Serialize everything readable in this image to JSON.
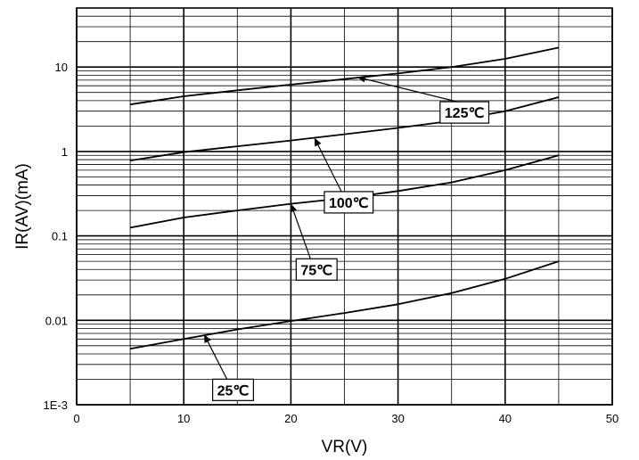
{
  "chart_data": {
    "type": "line",
    "title": "",
    "xlabel": "VR(V)",
    "ylabel": "IR(AV)(mA)",
    "xlim": [
      0,
      50
    ],
    "ylim": [
      0.001,
      50
    ],
    "yscale": "log",
    "grid": true,
    "x_ticks": [
      {
        "value": 0,
        "label": "0"
      },
      {
        "value": 10,
        "label": "10"
      },
      {
        "value": 20,
        "label": "20"
      },
      {
        "value": 30,
        "label": "30"
      },
      {
        "value": 40,
        "label": "40"
      },
      {
        "value": 50,
        "label": "50"
      }
    ],
    "y_ticks": [
      {
        "value": 0.001,
        "label": "1E-3"
      },
      {
        "value": 0.01,
        "label": "0.01"
      },
      {
        "value": 0.1,
        "label": "0.1"
      },
      {
        "value": 1,
        "label": "1"
      },
      {
        "value": 10,
        "label": "10"
      }
    ],
    "series": [
      {
        "name": "125℃",
        "x": [
          5,
          10,
          15,
          20,
          25,
          30,
          35,
          40,
          45
        ],
        "y": [
          3.6,
          4.5,
          5.3,
          6.2,
          7.2,
          8.4,
          10.0,
          12.5,
          17.0
        ]
      },
      {
        "name": "100℃",
        "x": [
          5,
          10,
          15,
          20,
          25,
          30,
          35,
          40,
          45
        ],
        "y": [
          0.78,
          0.98,
          1.15,
          1.35,
          1.6,
          1.9,
          2.3,
          3.0,
          4.4
        ]
      },
      {
        "name": "75℃",
        "x": [
          5,
          10,
          15,
          20,
          25,
          30,
          35,
          40,
          45
        ],
        "y": [
          0.125,
          0.165,
          0.2,
          0.24,
          0.28,
          0.34,
          0.43,
          0.6,
          0.9
        ]
      },
      {
        "name": "25℃",
        "x": [
          5,
          10,
          15,
          20,
          25,
          30,
          35,
          40,
          45
        ],
        "y": [
          0.0046,
          0.006,
          0.0078,
          0.0098,
          0.0122,
          0.0155,
          0.021,
          0.031,
          0.05
        ]
      }
    ],
    "annotations": [
      {
        "label": "125℃",
        "series": 0,
        "arrow_to": [
          26.2,
          7.6
        ],
        "box_at": [
          36.2,
          2.9
        ]
      },
      {
        "label": "100℃",
        "series": 1,
        "arrow_to": [
          22.2,
          1.45
        ],
        "box_at": [
          25.4,
          0.25
        ]
      },
      {
        "label": "75℃",
        "series": 2,
        "arrow_to": [
          20.0,
          0.24
        ],
        "box_at": [
          22.4,
          0.04
        ]
      },
      {
        "label": "25℃",
        "series": 3,
        "arrow_to": [
          11.9,
          0.0068
        ],
        "box_at": [
          14.6,
          0.0015
        ]
      }
    ]
  }
}
